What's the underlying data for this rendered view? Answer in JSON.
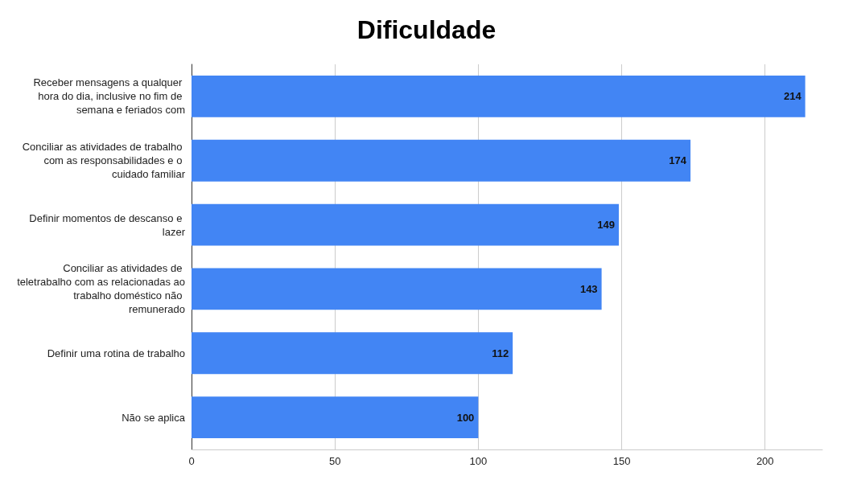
{
  "chart_data": {
    "type": "bar",
    "orientation": "horizontal",
    "title": "Dificuldade",
    "categories": [
      "Receber mensagens a qualquer hora do dia, inclusive no fim de semana e feriados com",
      "Conciliar as atividades de trabalho com as responsabilidades e o cuidado familiar",
      "Definir momentos de descanso e lazer",
      "Conciliar as atividades de teletrabalho com as relacionadas ao trabalho doméstico não remunerado",
      "Definir uma rotina de trabalho",
      "Não se aplica"
    ],
    "values": [
      214,
      174,
      149,
      143,
      112,
      100
    ],
    "color": "#4285f4",
    "xlim": [
      0,
      220
    ],
    "xticks": [
      0,
      50,
      100,
      150,
      200
    ],
    "grid": "x",
    "data_labels": true
  }
}
